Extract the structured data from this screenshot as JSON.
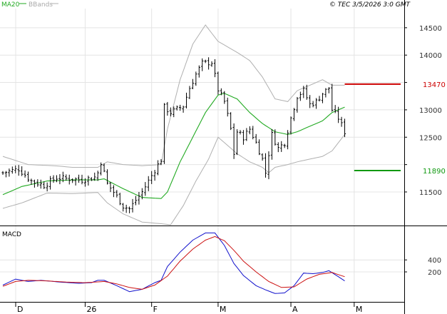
{
  "header": {
    "legend": [
      {
        "label": "MA20",
        "color": "#22aa22"
      },
      {
        "label": "BBands",
        "color": "#b0b0b0"
      }
    ],
    "timestamp": "© TEC 3/5/2026 3:0 GMT"
  },
  "colors": {
    "price": "#000000",
    "ma20": "#22aa22",
    "bbands": "#b0b0b0",
    "resistance": "#cc0000",
    "support": "#119911",
    "macd": "#1111cc",
    "signal": "#cc1111",
    "grid": "#e4e4e4",
    "axis": "#000000"
  },
  "chart_data": [
    {
      "type": "ohlc",
      "panel": "price",
      "ylim": [
        10900,
        14850
      ],
      "yticks": [
        11500,
        12000,
        12500,
        13000,
        13500,
        14000,
        14500
      ],
      "ytick_labels": [
        "11500",
        "",
        "12500",
        "13000",
        "",
        "14000",
        "14500"
      ],
      "xticks": [
        {
          "label": "D",
          "index": 0
        },
        {
          "label": "26",
          "index": 26
        },
        {
          "label": "F",
          "index": 47
        },
        {
          "label": "M",
          "index": 68
        },
        {
          "label": "A",
          "index": 91
        },
        {
          "label": "M",
          "index": 111
        }
      ],
      "x_count": 118,
      "levels": [
        {
          "name": "resistance",
          "value": 13470,
          "label": "13470",
          "color": "#cc0000",
          "from_index": 108
        },
        {
          "name": "support",
          "value": 11890,
          "label": "11890",
          "color": "#119911",
          "from_index": 111
        }
      ],
      "anchors": {
        "close": [
          [
            0,
            11850
          ],
          [
            5,
            11920
          ],
          [
            9,
            11700
          ],
          [
            13,
            11620
          ],
          [
            17,
            11760
          ],
          [
            21,
            11740
          ],
          [
            25,
            11720
          ],
          [
            29,
            11770
          ],
          [
            30,
            11850
          ],
          [
            31,
            12050
          ],
          [
            33,
            11650
          ],
          [
            36,
            11420
          ],
          [
            38,
            11240
          ],
          [
            40,
            11190
          ],
          [
            42,
            11350
          ],
          [
            44,
            11500
          ],
          [
            46,
            11700
          ],
          [
            48,
            11900
          ],
          [
            50,
            12090
          ],
          [
            51,
            13050
          ],
          [
            53,
            12950
          ],
          [
            57,
            13070
          ],
          [
            59,
            13400
          ],
          [
            61,
            13650
          ],
          [
            63,
            13850
          ],
          [
            66,
            13870
          ],
          [
            68,
            13370
          ],
          [
            70,
            13150
          ],
          [
            72,
            12650
          ],
          [
            73,
            12200
          ],
          [
            74,
            12600
          ],
          [
            76,
            12500
          ],
          [
            78,
            12650
          ],
          [
            80,
            12400
          ],
          [
            82,
            12100
          ],
          [
            83,
            11850
          ],
          [
            85,
            12550
          ],
          [
            87,
            12300
          ],
          [
            89,
            12400
          ],
          [
            91,
            12850
          ],
          [
            93,
            13250
          ],
          [
            95,
            13350
          ],
          [
            97,
            13100
          ],
          [
            99,
            13150
          ],
          [
            101,
            13300
          ],
          [
            103,
            13400
          ],
          [
            104,
            13000
          ],
          [
            106,
            12850
          ],
          [
            108,
            12600
          ]
        ],
        "ma20": [
          [
            0,
            11450
          ],
          [
            6,
            11600
          ],
          [
            14,
            11700
          ],
          [
            22,
            11720
          ],
          [
            30,
            11720
          ],
          [
            32,
            11740
          ],
          [
            38,
            11560
          ],
          [
            44,
            11400
          ],
          [
            50,
            11380
          ],
          [
            52,
            11500
          ],
          [
            56,
            12050
          ],
          [
            60,
            12500
          ],
          [
            64,
            12950
          ],
          [
            68,
            13270
          ],
          [
            70,
            13300
          ],
          [
            74,
            13200
          ],
          [
            78,
            12950
          ],
          [
            82,
            12750
          ],
          [
            86,
            12600
          ],
          [
            90,
            12550
          ],
          [
            93,
            12600
          ],
          [
            97,
            12700
          ],
          [
            101,
            12800
          ],
          [
            104,
            12950
          ],
          [
            108,
            13050
          ]
        ],
        "bband_upper": [
          [
            0,
            12150
          ],
          [
            8,
            12000
          ],
          [
            16,
            11980
          ],
          [
            22,
            11950
          ],
          [
            30,
            11950
          ],
          [
            33,
            12050
          ],
          [
            38,
            12000
          ],
          [
            44,
            11980
          ],
          [
            50,
            12000
          ],
          [
            52,
            12650
          ],
          [
            56,
            13550
          ],
          [
            60,
            14200
          ],
          [
            64,
            14550
          ],
          [
            68,
            14250
          ],
          [
            71,
            14150
          ],
          [
            74,
            14050
          ],
          [
            78,
            13900
          ],
          [
            82,
            13600
          ],
          [
            86,
            13200
          ],
          [
            90,
            13150
          ],
          [
            93,
            13350
          ],
          [
            97,
            13450
          ],
          [
            101,
            13550
          ],
          [
            104,
            13450
          ],
          [
            108,
            13450
          ]
        ],
        "bband_lower": [
          [
            0,
            11200
          ],
          [
            6,
            11300
          ],
          [
            14,
            11480
          ],
          [
            22,
            11470
          ],
          [
            30,
            11490
          ],
          [
            33,
            11300
          ],
          [
            38,
            11100
          ],
          [
            44,
            10950
          ],
          [
            50,
            10920
          ],
          [
            53,
            10900
          ],
          [
            57,
            11250
          ],
          [
            61,
            11700
          ],
          [
            65,
            12100
          ],
          [
            68,
            12500
          ],
          [
            71,
            12350
          ],
          [
            74,
            12200
          ],
          [
            78,
            12050
          ],
          [
            82,
            11950
          ],
          [
            84,
            11850
          ],
          [
            86,
            11950
          ],
          [
            90,
            12000
          ],
          [
            93,
            12050
          ],
          [
            97,
            12100
          ],
          [
            101,
            12150
          ],
          [
            104,
            12250
          ],
          [
            108,
            12550
          ]
        ]
      }
    },
    {
      "type": "line",
      "panel": "macd",
      "title": "MACD",
      "ylim": [
        -300,
        950
      ],
      "yticks": [
        200,
        400
      ],
      "ytick_labels": [
        "200",
        "400"
      ],
      "series": [
        {
          "key": "macd",
          "color": "#1111cc",
          "points": [
            [
              0,
              -20
            ],
            [
              4,
              80
            ],
            [
              8,
              40
            ],
            [
              12,
              60
            ],
            [
              18,
              30
            ],
            [
              24,
              10
            ],
            [
              28,
              20
            ],
            [
              30,
              60
            ],
            [
              32,
              60
            ],
            [
              36,
              -30
            ],
            [
              40,
              -130
            ],
            [
              44,
              -90
            ],
            [
              48,
              20
            ],
            [
              50,
              60
            ],
            [
              52,
              290
            ],
            [
              56,
              530
            ],
            [
              60,
              730
            ],
            [
              64,
              850
            ],
            [
              67,
              850
            ],
            [
              70,
              640
            ],
            [
              73,
              340
            ],
            [
              76,
              140
            ],
            [
              80,
              -30
            ],
            [
              83,
              -100
            ],
            [
              86,
              -160
            ],
            [
              89,
              -150
            ],
            [
              92,
              -30
            ],
            [
              95,
              180
            ],
            [
              98,
              170
            ],
            [
              101,
              190
            ],
            [
              103,
              220
            ],
            [
              106,
              120
            ],
            [
              108,
              50
            ]
          ]
        },
        {
          "key": "signal",
          "color": "#cc1111",
          "points": [
            [
              0,
              -40
            ],
            [
              4,
              40
            ],
            [
              8,
              60
            ],
            [
              14,
              50
            ],
            [
              20,
              30
            ],
            [
              26,
              20
            ],
            [
              32,
              40
            ],
            [
              36,
              0
            ],
            [
              40,
              -60
            ],
            [
              44,
              -90
            ],
            [
              48,
              -20
            ],
            [
              52,
              130
            ],
            [
              56,
              380
            ],
            [
              60,
              580
            ],
            [
              64,
              730
            ],
            [
              67,
              790
            ],
            [
              70,
              720
            ],
            [
              73,
              560
            ],
            [
              76,
              380
            ],
            [
              80,
              200
            ],
            [
              84,
              40
            ],
            [
              88,
              -60
            ],
            [
              92,
              -50
            ],
            [
              96,
              80
            ],
            [
              100,
              160
            ],
            [
              104,
              190
            ],
            [
              108,
              120
            ]
          ]
        }
      ]
    }
  ]
}
